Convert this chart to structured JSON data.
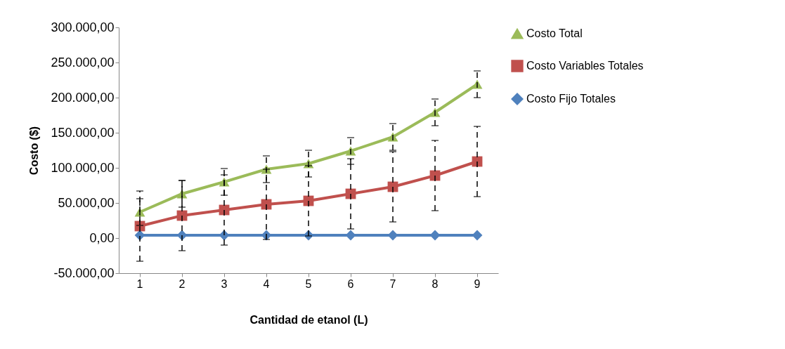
{
  "chart_data": {
    "type": "line",
    "xlabel": "Cantidad de etanol (L)",
    "ylabel": "Costo  ($)",
    "categories": [
      "1",
      "2",
      "3",
      "4",
      "5",
      "6",
      "7",
      "8",
      "9"
    ],
    "series": [
      {
        "name": "Costo Total",
        "color": "#9bbb59",
        "marker": "triangle",
        "values": [
          37000,
          63000,
          80000,
          98000,
          106000,
          124000,
          144000,
          179000,
          219000
        ],
        "errors": [
          19000,
          19000,
          19000,
          19000,
          19000,
          19000,
          19000,
          19000,
          19000
        ]
      },
      {
        "name": "Costo Variables Totales",
        "color": "#c0504d",
        "marker": "square",
        "values": [
          17000,
          32000,
          40000,
          48000,
          53000,
          63000,
          73000,
          89000,
          109000
        ],
        "errors": [
          50000,
          50000,
          50000,
          50000,
          50000,
          50000,
          50000,
          50000,
          50000
        ]
      },
      {
        "name": "Costo Fijo Totales",
        "color": "#4f81bd",
        "marker": "diamond",
        "values": [
          4000,
          4000,
          4000,
          4000,
          4000,
          4000,
          4000,
          4000,
          4000
        ]
      }
    ],
    "ylim": [
      -50000,
      300000
    ],
    "yticks": [
      {
        "value": -50000,
        "label": "-50.000,00"
      },
      {
        "value": 0,
        "label": "0,00"
      },
      {
        "value": 50000,
        "label": "50.000,00"
      },
      {
        "value": 100000,
        "label": "100.000,00"
      },
      {
        "value": 150000,
        "label": "150.000,00"
      },
      {
        "value": 200000,
        "label": "200.000,00"
      },
      {
        "value": 250000,
        "label": "250.000,00"
      },
      {
        "value": 300000,
        "label": "300.000,00"
      }
    ],
    "grid": false,
    "legend": "right",
    "line_style": "solid"
  }
}
